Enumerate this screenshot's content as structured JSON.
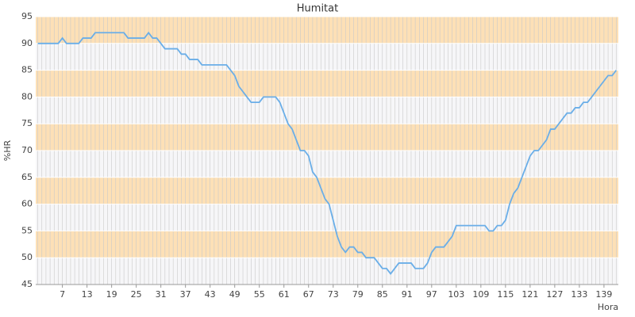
{
  "chart_data": {
    "type": "line",
    "title": "Humitat",
    "x_label": "Hora",
    "y_label": "%HR",
    "x": [
      1,
      2,
      3,
      4,
      5,
      6,
      7,
      8,
      9,
      10,
      11,
      12,
      13,
      14,
      15,
      16,
      17,
      18,
      19,
      20,
      21,
      22,
      23,
      24,
      25,
      26,
      27,
      28,
      29,
      30,
      31,
      32,
      33,
      34,
      35,
      36,
      37,
      38,
      39,
      40,
      41,
      42,
      43,
      44,
      45,
      46,
      47,
      48,
      49,
      50,
      51,
      52,
      53,
      54,
      55,
      56,
      57,
      58,
      59,
      60,
      61,
      62,
      63,
      64,
      65,
      66,
      67,
      68,
      69,
      70,
      71,
      72,
      73,
      74,
      75,
      76,
      77,
      78,
      79,
      80,
      81,
      82,
      83,
      84,
      85,
      86,
      87,
      88,
      89,
      90,
      91,
      92,
      93,
      94,
      95,
      96,
      97,
      98,
      99,
      100,
      101,
      102,
      103,
      104,
      105,
      106,
      107,
      108,
      109,
      110,
      111,
      112,
      113,
      114,
      115,
      116,
      117,
      118,
      119,
      120,
      121,
      122,
      123,
      124,
      125,
      126,
      127,
      128,
      129,
      130,
      131,
      132,
      133,
      134,
      135,
      136,
      137,
      138,
      139,
      140,
      141,
      142
    ],
    "series": [
      {
        "color": "#6aaee8",
        "values": [
          90,
          90,
          90,
          90,
          90,
          90,
          91,
          90,
          90,
          90,
          90,
          91,
          91,
          91,
          92,
          92,
          92,
          92,
          92,
          92,
          92,
          92,
          91,
          91,
          91,
          91,
          91,
          92,
          91,
          91,
          90,
          89,
          89,
          89,
          89,
          88,
          88,
          87,
          87,
          87,
          86,
          86,
          86,
          86,
          86,
          86,
          86,
          85,
          84,
          82,
          81,
          80,
          79,
          79,
          79,
          80,
          80,
          80,
          80,
          79,
          77,
          75,
          74,
          72,
          70,
          70,
          69,
          66,
          65,
          63,
          61,
          60,
          57,
          54,
          52,
          51,
          52,
          52,
          51,
          51,
          50,
          50,
          50,
          49,
          48,
          48,
          47,
          48,
          49,
          49,
          49,
          49,
          48,
          48,
          48,
          49,
          51,
          52,
          52,
          52,
          53,
          54,
          56,
          56,
          56,
          56,
          56,
          56,
          56,
          56,
          55,
          55,
          56,
          56,
          57,
          60,
          62,
          63,
          65,
          67,
          69,
          70,
          70,
          71,
          72,
          74,
          74,
          75,
          76,
          77,
          77,
          78,
          78,
          79,
          79,
          80,
          81,
          82,
          83,
          84,
          84,
          85
        ]
      }
    ],
    "xlim": [
      0.5,
      142.5
    ],
    "xticks": [
      7,
      13,
      19,
      25,
      31,
      37,
      43,
      49,
      55,
      61,
      67,
      73,
      79,
      85,
      91,
      97,
      103,
      109,
      115,
      121,
      127,
      133,
      139
    ],
    "ylim": [
      45,
      95
    ],
    "yticks": [
      45,
      50,
      55,
      60,
      65,
      70,
      75,
      80,
      85,
      90,
      95
    ],
    "band_colors": [
      "#f6f6f8",
      "#fde0b6"
    ],
    "grid_color": "#c9c9c9"
  }
}
